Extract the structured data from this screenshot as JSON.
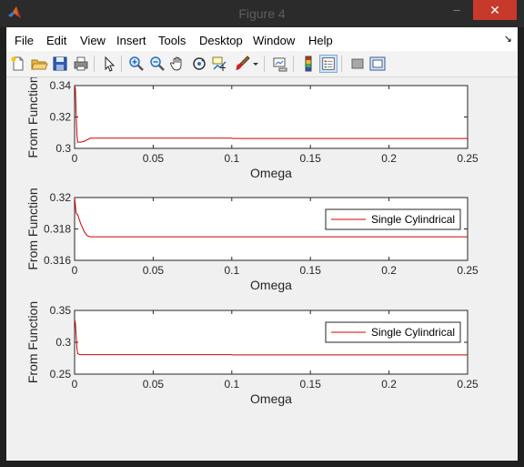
{
  "window": {
    "title": "Figure 4",
    "controls": {
      "minimize": "–",
      "maximize": "□",
      "close": "✕"
    }
  },
  "menu": {
    "items": [
      "File",
      "Edit",
      "View",
      "Insert",
      "Tools",
      "Desktop",
      "Window",
      "Help"
    ],
    "dock_arrow": "↘"
  },
  "toolbar": {
    "buttons": [
      "new-figure",
      "open-file",
      "save",
      "print",
      "edit-plot",
      "zoom-in",
      "zoom-out",
      "pan",
      "rotate-3d",
      "data-cursor",
      "brush",
      "link-plot",
      "insert-colorbar",
      "insert-legend",
      "hide-plot-tools",
      "show-plot-tools"
    ]
  },
  "colors": {
    "line": "#d00000",
    "axes_bg": "#ffffff",
    "figure_bg": "#f0f0f0",
    "close_button": "#c7392a"
  },
  "chart_data": [
    {
      "type": "line",
      "xlabel": "Omega",
      "ylabel": "From Function",
      "xlim": [
        0,
        0.25
      ],
      "ylim": [
        0.3,
        0.34
      ],
      "xticks": [
        "0",
        "0.05",
        "0.1",
        "0.15",
        "0.2",
        "0.25"
      ],
      "yticks": [
        "0.3",
        "0.32",
        "0.34"
      ],
      "legend": null,
      "series": [
        {
          "x": [
            0,
            0.0005,
            0.001,
            0.0015,
            0.002,
            0.003,
            0.004,
            0.006,
            0.008,
            0.01,
            0.015,
            0.02,
            0.05,
            0.1,
            0.1005,
            0.15,
            0.2,
            0.25
          ],
          "values": [
            0.342,
            0.338,
            0.322,
            0.308,
            0.304,
            0.304,
            0.304,
            0.3045,
            0.3055,
            0.3065,
            0.3065,
            0.3065,
            0.3065,
            0.3065,
            0.3063,
            0.3063,
            0.3063,
            0.3063
          ]
        }
      ]
    },
    {
      "type": "line",
      "xlabel": "Omega",
      "ylabel": "From Function",
      "xlim": [
        0,
        0.25
      ],
      "ylim": [
        0.316,
        0.32
      ],
      "xticks": [
        "0",
        "0.05",
        "0.1",
        "0.15",
        "0.2",
        "0.25"
      ],
      "yticks": [
        "0.316",
        "0.318",
        "0.32"
      ],
      "legend": {
        "entries": [
          "Single Cylindrical"
        ],
        "placement": "top-right"
      },
      "series": [
        {
          "name": "Single Cylindrical",
          "x": [
            0,
            0.0005,
            0.001,
            0.002,
            0.003,
            0.004,
            0.005,
            0.006,
            0.007,
            0.008,
            0.01,
            0.012,
            0.02,
            0.05,
            0.1,
            0.15,
            0.2,
            0.25
          ],
          "values": [
            0.32,
            0.3195,
            0.319,
            0.3189,
            0.3186,
            0.3183,
            0.3181,
            0.31785,
            0.3177,
            0.31757,
            0.3175,
            0.3175,
            0.3175,
            0.3175,
            0.3175,
            0.3175,
            0.3175,
            0.3175
          ]
        }
      ]
    },
    {
      "type": "line",
      "xlabel": "Omega",
      "ylabel": "From Function",
      "xlim": [
        0,
        0.25
      ],
      "ylim": [
        0.25,
        0.35
      ],
      "xticks": [
        "0",
        "0.05",
        "0.1",
        "0.15",
        "0.2",
        "0.25"
      ],
      "yticks": [
        "0.25",
        "0.3",
        "0.35"
      ],
      "legend": {
        "entries": [
          "Single Cylindrical"
        ],
        "placement": "top-right"
      },
      "series": [
        {
          "name": "Single Cylindrical",
          "x": [
            0,
            0.0005,
            0.001,
            0.0015,
            0.002,
            0.003,
            0.004,
            0.006,
            0.01,
            0.05,
            0.1,
            0.1005,
            0.15,
            0.2,
            0.25
          ],
          "values": [
            0.336,
            0.33,
            0.31,
            0.29,
            0.282,
            0.281,
            0.2805,
            0.2805,
            0.2805,
            0.2805,
            0.2805,
            0.2802,
            0.2802,
            0.2802,
            0.2802
          ]
        }
      ]
    }
  ]
}
